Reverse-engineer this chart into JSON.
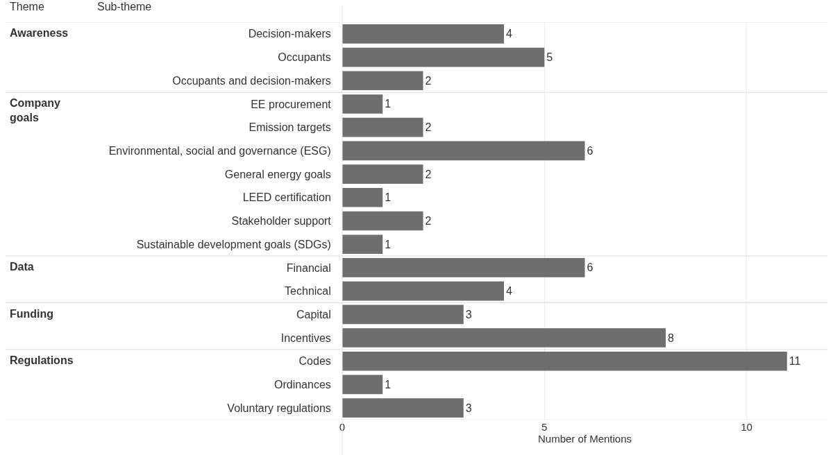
{
  "chart_data": {
    "type": "bar",
    "orientation": "horizontal",
    "categories": [
      "Decision-makers",
      "Occupants",
      "Occupants and decision-makers",
      "EE procurement",
      "Emission targets",
      "Environmental, social and governance (ESG)",
      "General energy goals",
      "LEED certification",
      "Stakeholder support",
      "Sustainable development goals (SDGs)",
      "Financial",
      "Technical",
      "Capital",
      "Incentives",
      "Codes",
      "Ordinances",
      "Voluntary regulations"
    ],
    "values": [
      4,
      5,
      2,
      1,
      2,
      6,
      2,
      1,
      2,
      1,
      6,
      4,
      3,
      8,
      11,
      1,
      3
    ],
    "color": "#6e6e6e",
    "xlabel": "Number of Mentions",
    "xlim": [
      0,
      12
    ],
    "xticks": [
      0,
      5,
      10
    ],
    "grid": "x",
    "data_labels": true,
    "annotations": [
      "Theme",
      "Sub-theme",
      "Awareness",
      "Company goals",
      "Data",
      "Funding",
      "Regulations"
    ]
  }
}
